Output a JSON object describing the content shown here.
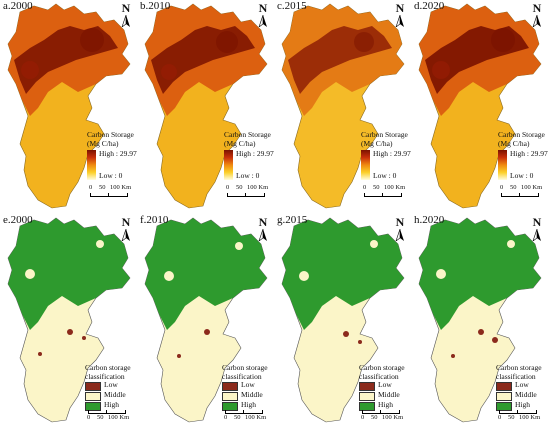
{
  "panels_top": [
    {
      "label": "a.2000"
    },
    {
      "label": "b.2010"
    },
    {
      "label": "c.2015"
    },
    {
      "label": "d.2020"
    }
  ],
  "panels_bottom": [
    {
      "label": "e.2000"
    },
    {
      "label": "f.2010"
    },
    {
      "label": "g.2015"
    },
    {
      "label": "h.2020"
    }
  ],
  "north_label": "N",
  "storage_legend": {
    "title_line1": "Carbon Storage",
    "title_line2": "(Mg C/ha)",
    "high": "High : 29.97",
    "low": "Low : 0"
  },
  "class_legend": {
    "title_line1": "Carbon storage",
    "title_line2": "classification",
    "items": [
      {
        "label": "Low",
        "color": "#8b2a1c"
      },
      {
        "label": "Middle",
        "color": "#fbf5c8"
      },
      {
        "label": "High",
        "color": "#2e9a2e"
      }
    ]
  },
  "scale": {
    "t0": "0",
    "t1": "50",
    "t2": "100 Km"
  },
  "colors": {
    "storage_dark": "#7a1200",
    "storage_mid": "#d9560e",
    "storage_light": "#f2b21e",
    "class_high": "#2e9a2e",
    "class_middle": "#fbf5c8",
    "class_low": "#8b2a1c",
    "boundary": "#555555"
  }
}
